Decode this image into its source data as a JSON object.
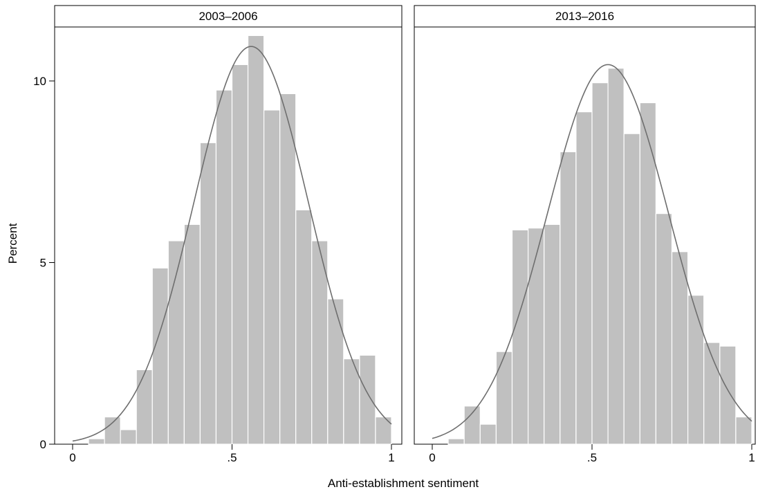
{
  "chart_data": {
    "type": "bar",
    "subtype": "histogram with normal density overlay",
    "xlabel": "Anti-establishment sentiment",
    "ylabel": "Percent",
    "xlim": [
      0,
      1
    ],
    "ylim": [
      0,
      11.5
    ],
    "x_ticks": [
      0,
      0.5,
      1
    ],
    "x_tick_labels": [
      "0",
      ".5",
      "1"
    ],
    "y_ticks": [
      0,
      5,
      10
    ],
    "y_tick_labels": [
      "0",
      "5",
      "10"
    ],
    "bin_width": 0.05,
    "grid": false,
    "panels": [
      {
        "title": "2003–2006",
        "bins": [
          {
            "x0": 0.05,
            "x1": 0.1,
            "value": 0.15
          },
          {
            "x0": 0.1,
            "x1": 0.15,
            "value": 0.75
          },
          {
            "x0": 0.15,
            "x1": 0.2,
            "value": 0.4
          },
          {
            "x0": 0.2,
            "x1": 0.25,
            "value": 2.05
          },
          {
            "x0": 0.25,
            "x1": 0.3,
            "value": 4.85
          },
          {
            "x0": 0.3,
            "x1": 0.35,
            "value": 5.6
          },
          {
            "x0": 0.35,
            "x1": 0.4,
            "value": 6.05
          },
          {
            "x0": 0.4,
            "x1": 0.45,
            "value": 8.3
          },
          {
            "x0": 0.45,
            "x1": 0.5,
            "value": 9.75
          },
          {
            "x0": 0.5,
            "x1": 0.55,
            "value": 10.45
          },
          {
            "x0": 0.55,
            "x1": 0.6,
            "value": 11.25
          },
          {
            "x0": 0.6,
            "x1": 0.65,
            "value": 9.2
          },
          {
            "x0": 0.65,
            "x1": 0.7,
            "value": 9.65
          },
          {
            "x0": 0.7,
            "x1": 0.75,
            "value": 6.45
          },
          {
            "x0": 0.75,
            "x1": 0.8,
            "value": 5.6
          },
          {
            "x0": 0.8,
            "x1": 0.85,
            "value": 4.0
          },
          {
            "x0": 0.85,
            "x1": 0.9,
            "value": 2.35
          },
          {
            "x0": 0.9,
            "x1": 0.95,
            "value": 2.45
          },
          {
            "x0": 0.95,
            "x1": 1.0,
            "value": 0.75
          }
        ],
        "normal_curve": {
          "mean": 0.56,
          "sd": 0.18,
          "peak": 10.95
        }
      },
      {
        "title": "2013–2016",
        "bins": [
          {
            "x0": 0.05,
            "x1": 0.1,
            "value": 0.15
          },
          {
            "x0": 0.1,
            "x1": 0.15,
            "value": 1.05
          },
          {
            "x0": 0.15,
            "x1": 0.2,
            "value": 0.55
          },
          {
            "x0": 0.2,
            "x1": 0.25,
            "value": 2.55
          },
          {
            "x0": 0.25,
            "x1": 0.3,
            "value": 5.9
          },
          {
            "x0": 0.3,
            "x1": 0.35,
            "value": 5.95
          },
          {
            "x0": 0.35,
            "x1": 0.4,
            "value": 6.05
          },
          {
            "x0": 0.4,
            "x1": 0.45,
            "value": 8.05
          },
          {
            "x0": 0.45,
            "x1": 0.5,
            "value": 9.15
          },
          {
            "x0": 0.5,
            "x1": 0.55,
            "value": 9.95
          },
          {
            "x0": 0.55,
            "x1": 0.6,
            "value": 10.35
          },
          {
            "x0": 0.6,
            "x1": 0.65,
            "value": 8.55
          },
          {
            "x0": 0.65,
            "x1": 0.7,
            "value": 9.4
          },
          {
            "x0": 0.7,
            "x1": 0.75,
            "value": 6.35
          },
          {
            "x0": 0.75,
            "x1": 0.8,
            "value": 5.3
          },
          {
            "x0": 0.8,
            "x1": 0.85,
            "value": 4.1
          },
          {
            "x0": 0.85,
            "x1": 0.9,
            "value": 2.8
          },
          {
            "x0": 0.9,
            "x1": 0.95,
            "value": 2.7
          },
          {
            "x0": 0.95,
            "x1": 1.0,
            "value": 0.75
          }
        ],
        "normal_curve": {
          "mean": 0.55,
          "sd": 0.19,
          "peak": 10.45
        }
      }
    ]
  }
}
